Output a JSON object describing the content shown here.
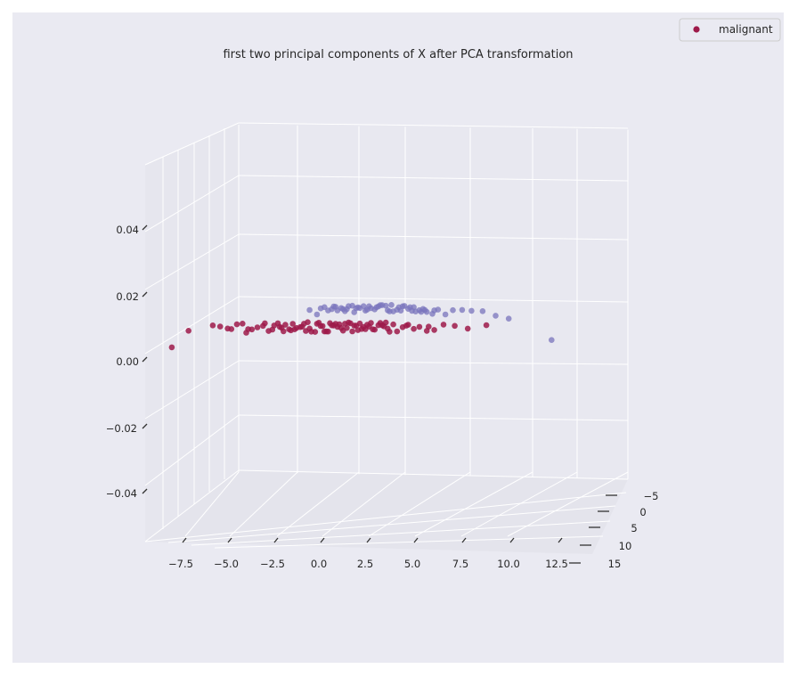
{
  "chart_data": {
    "type": "scatter",
    "projection": "3d",
    "title": "first two principal components of X after PCA transformation",
    "xlabel": "",
    "ylabel": "",
    "zlabel": "",
    "x_ticks": [
      "−7.5",
      "−5.0",
      "−2.5",
      "0.0",
      "2.5",
      "5.0",
      "7.5",
      "10.0",
      "12.5"
    ],
    "y_ticks": [
      "−5",
      "0",
      "5",
      "10",
      "15"
    ],
    "z_ticks": [
      "0.04",
      "0.02",
      "0.00",
      "−0.02",
      "−0.04"
    ],
    "xlim": [
      -9,
      13
    ],
    "ylim": [
      -7,
      16
    ],
    "zlim": [
      -0.05,
      0.05
    ],
    "grid": true,
    "legend": {
      "position": "top-right",
      "entries": [
        "malignant"
      ]
    },
    "colors": {
      "background": "#eaeaf2",
      "grid": "#ffffff",
      "malignant": "#9e1a4a",
      "benign": "#7a74bc"
    },
    "series": [
      {
        "name": "malignant",
        "color": "#9e1a4a",
        "points": [
          [
            -7.9,
            0
          ],
          [
            -7.0,
            0
          ],
          [
            -5.7,
            0
          ],
          [
            -5.3,
            0
          ],
          [
            -4.9,
            0
          ],
          [
            -4.7,
            0
          ],
          [
            -4.4,
            0
          ],
          [
            -3.9,
            0
          ],
          [
            -3.6,
            0
          ],
          [
            -3.3,
            0
          ],
          [
            -3.0,
            0
          ],
          [
            -2.7,
            0
          ],
          [
            -2.5,
            0
          ],
          [
            -2.2,
            0
          ],
          [
            -2.0,
            0
          ],
          [
            -1.8,
            0
          ],
          [
            -1.6,
            0
          ],
          [
            -1.4,
            0
          ],
          [
            -1.2,
            0
          ],
          [
            -1.0,
            0
          ],
          [
            -0.8,
            0
          ],
          [
            -0.6,
            0
          ],
          [
            -0.4,
            0
          ],
          [
            -0.2,
            0
          ],
          [
            0.0,
            0
          ],
          [
            0.2,
            0
          ],
          [
            0.4,
            0
          ],
          [
            0.6,
            0
          ],
          [
            0.8,
            0
          ],
          [
            1.0,
            0
          ],
          [
            1.2,
            0
          ],
          [
            1.4,
            0
          ],
          [
            1.6,
            0
          ],
          [
            1.8,
            0
          ],
          [
            2.0,
            0
          ],
          [
            2.2,
            0
          ],
          [
            2.4,
            0
          ],
          [
            2.6,
            0
          ],
          [
            2.8,
            0
          ],
          [
            3.0,
            0
          ],
          [
            3.2,
            0
          ],
          [
            3.4,
            0
          ],
          [
            3.6,
            0
          ],
          [
            3.8,
            0
          ],
          [
            4.0,
            0
          ],
          [
            4.2,
            0
          ],
          [
            4.5,
            0
          ],
          [
            4.8,
            0
          ],
          [
            5.1,
            0
          ],
          [
            5.4,
            0
          ],
          [
            5.8,
            0
          ],
          [
            6.2,
            0
          ],
          [
            6.7,
            0
          ],
          [
            7.3,
            0
          ],
          [
            8.0,
            0
          ],
          [
            9.0,
            0
          ],
          [
            -2.9,
            0
          ],
          [
            -2.1,
            0
          ],
          [
            -1.3,
            0
          ],
          [
            -0.5,
            0
          ],
          [
            0.3,
            0
          ],
          [
            1.1,
            0
          ],
          [
            1.9,
            0
          ],
          [
            2.7,
            0
          ],
          [
            3.5,
            0
          ],
          [
            -1.9,
            0
          ],
          [
            -0.9,
            0
          ],
          [
            0.1,
            0
          ],
          [
            0.9,
            0
          ],
          [
            1.7,
            0
          ],
          [
            2.5,
            0
          ],
          [
            3.3,
            0
          ],
          [
            -2.4,
            0
          ],
          [
            -1.5,
            0
          ],
          [
            -0.7,
            0
          ],
          [
            0.5,
            0
          ],
          [
            1.3,
            0
          ],
          [
            2.1,
            0
          ],
          [
            2.9,
            0
          ],
          [
            3.7,
            0
          ],
          [
            -3.8,
            0
          ],
          [
            -4.1,
            0
          ],
          [
            4.7,
            0
          ],
          [
            5.9,
            0
          ],
          [
            -0.1,
            0
          ],
          [
            0.7,
            0
          ],
          [
            1.5,
            0
          ],
          [
            2.3,
            0
          ]
        ]
      },
      {
        "name": "",
        "color": "#7a74bc",
        "points": [
          [
            -0.5,
            0
          ],
          [
            -0.1,
            0
          ],
          [
            0.3,
            0
          ],
          [
            0.7,
            0
          ],
          [
            1.0,
            0
          ],
          [
            1.3,
            0
          ],
          [
            1.6,
            0
          ],
          [
            1.9,
            0
          ],
          [
            2.2,
            0
          ],
          [
            2.5,
            0
          ],
          [
            2.8,
            0
          ],
          [
            3.1,
            0
          ],
          [
            3.4,
            0
          ],
          [
            3.7,
            0
          ],
          [
            4.0,
            0
          ],
          [
            4.3,
            0
          ],
          [
            4.6,
            0
          ],
          [
            4.9,
            0
          ],
          [
            5.2,
            0
          ],
          [
            5.5,
            0
          ],
          [
            5.8,
            0
          ],
          [
            6.1,
            0
          ],
          [
            6.4,
            0
          ],
          [
            6.8,
            0
          ],
          [
            7.2,
            0
          ],
          [
            7.7,
            0
          ],
          [
            8.2,
            0
          ],
          [
            8.8,
            0
          ],
          [
            9.5,
            0
          ],
          [
            10.2,
            0
          ],
          [
            12.5,
            0
          ],
          [
            0.1,
            0
          ],
          [
            0.5,
            0
          ],
          [
            0.9,
            0
          ],
          [
            1.2,
            0
          ],
          [
            1.5,
            0
          ],
          [
            1.8,
            0
          ],
          [
            2.1,
            0
          ],
          [
            2.4,
            0
          ],
          [
            2.7,
            0
          ],
          [
            3.0,
            0
          ],
          [
            3.3,
            0
          ],
          [
            3.6,
            0
          ],
          [
            3.9,
            0
          ],
          [
            4.2,
            0
          ],
          [
            4.5,
            0
          ],
          [
            4.8,
            0
          ],
          [
            5.1,
            0
          ],
          [
            5.4,
            0
          ],
          [
            5.7,
            0
          ],
          [
            0.8,
            0
          ],
          [
            1.4,
            0
          ],
          [
            2.0,
            0
          ],
          [
            2.6,
            0
          ],
          [
            3.2,
            0
          ],
          [
            3.8,
            0
          ],
          [
            4.4,
            0
          ],
          [
            5.0,
            0
          ],
          [
            5.6,
            0
          ],
          [
            6.2,
            0
          ]
        ]
      }
    ]
  }
}
